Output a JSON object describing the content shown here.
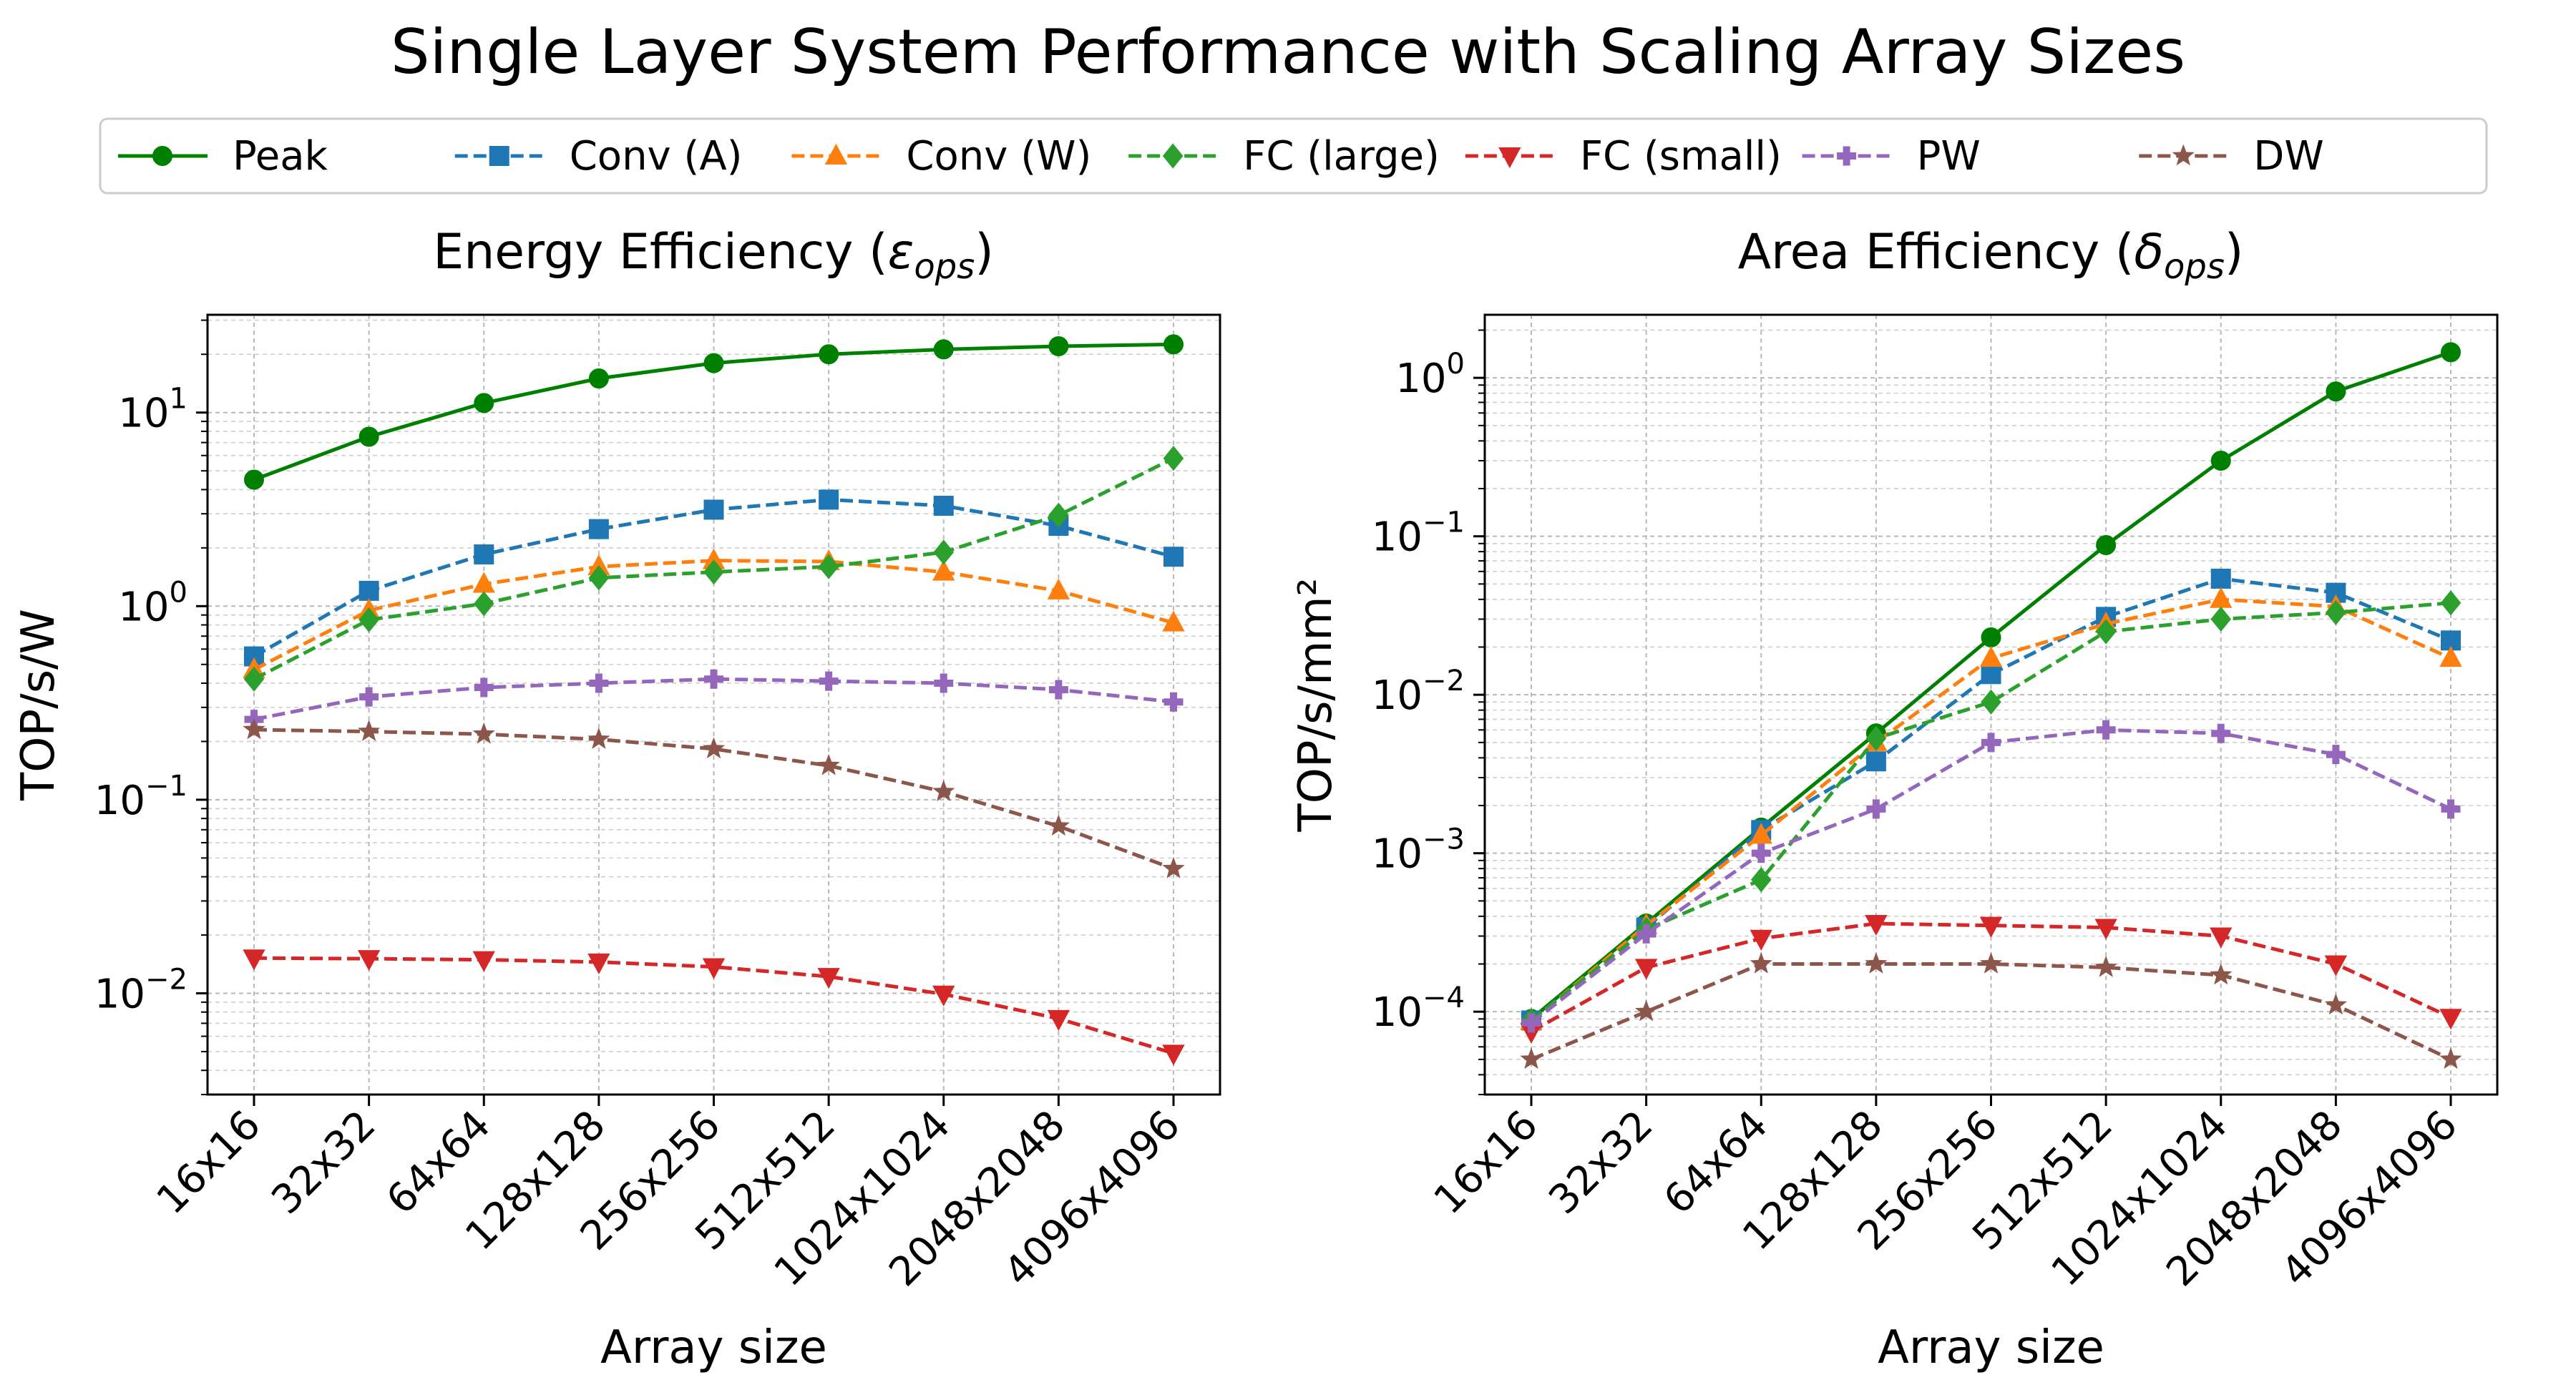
{
  "figure": {
    "title": "Single Layer System Performance with Scaling Array Sizes"
  },
  "legend": {
    "placement": "top-center",
    "entries": [
      {
        "key": "peak",
        "label": "Peak"
      },
      {
        "key": "conv_a",
        "label": "Conv (A)"
      },
      {
        "key": "conv_w",
        "label": "Conv (W)"
      },
      {
        "key": "fc_large",
        "label": "FC (large)"
      },
      {
        "key": "fc_small",
        "label": "FC (small)"
      },
      {
        "key": "pw",
        "label": "PW"
      },
      {
        "key": "dw",
        "label": "DW"
      }
    ]
  },
  "series_styles": {
    "peak": {
      "color": "#008000",
      "marker": "circle",
      "dashed": false
    },
    "conv_a": {
      "color": "#1f77b4",
      "marker": "square",
      "dashed": true
    },
    "conv_w": {
      "color": "#ff7f0e",
      "marker": "triangle-up",
      "dashed": true
    },
    "fc_large": {
      "color": "#2ca02c",
      "marker": "diamond",
      "dashed": true
    },
    "fc_small": {
      "color": "#d62728",
      "marker": "triangle-down",
      "dashed": true
    },
    "pw": {
      "color": "#9467bd",
      "marker": "plus",
      "dashed": true
    },
    "dw": {
      "color": "#8c564b",
      "marker": "star",
      "dashed": true
    }
  },
  "chart_data": [
    {
      "type": "line",
      "title_prefix": "Energy Efficiency (",
      "title_symbol": "ε",
      "title_subscript": "ops",
      "title_suffix": ")",
      "xlabel": "Array size",
      "ylabel": "TOP/s/W",
      "yscale": "log",
      "ylim": [
        0.003,
        32
      ],
      "yticks": [
        {
          "value": 0.01,
          "base": "10",
          "exp": "−2"
        },
        {
          "value": 0.1,
          "base": "10",
          "exp": "−1"
        },
        {
          "value": 1,
          "base": "10",
          "exp": "0"
        },
        {
          "value": 10,
          "base": "10",
          "exp": "1"
        }
      ],
      "grid": true,
      "categories": [
        "16x16",
        "32x32",
        "64x64",
        "128x128",
        "256x256",
        "512x512",
        "1024x1024",
        "2048x2048",
        "4096x4096"
      ],
      "series": [
        {
          "key": "peak",
          "values": [
            4.5,
            7.5,
            11.2,
            15.0,
            18.0,
            20.0,
            21.2,
            22.0,
            22.5
          ]
        },
        {
          "key": "conv_a",
          "values": [
            0.55,
            1.2,
            1.85,
            2.5,
            3.15,
            3.55,
            3.3,
            2.6,
            1.8
          ]
        },
        {
          "key": "conv_w",
          "values": [
            0.47,
            0.95,
            1.3,
            1.6,
            1.72,
            1.7,
            1.5,
            1.2,
            0.82
          ]
        },
        {
          "key": "fc_large",
          "values": [
            0.42,
            0.85,
            1.03,
            1.4,
            1.5,
            1.6,
            1.9,
            2.95,
            5.8
          ]
        },
        {
          "key": "fc_small",
          "values": [
            0.0152,
            0.0151,
            0.0149,
            0.0145,
            0.0137,
            0.0122,
            0.0099,
            0.0074,
            0.0049
          ]
        },
        {
          "key": "pw",
          "values": [
            0.26,
            0.34,
            0.38,
            0.4,
            0.42,
            0.41,
            0.4,
            0.37,
            0.32
          ]
        },
        {
          "key": "dw",
          "values": [
            0.23,
            0.225,
            0.218,
            0.205,
            0.183,
            0.15,
            0.11,
            0.073,
            0.044
          ]
        }
      ]
    },
    {
      "type": "line",
      "title_prefix": "Area Efficiency (",
      "title_symbol": "δ",
      "title_subscript": "ops",
      "title_suffix": ")",
      "xlabel": "Array size",
      "ylabel": "TOP/s/mm²",
      "yscale": "log",
      "ylim": [
        3e-05,
        2.5
      ],
      "yticks": [
        {
          "value": 0.0001,
          "base": "10",
          "exp": "−4"
        },
        {
          "value": 0.001,
          "base": "10",
          "exp": "−3"
        },
        {
          "value": 0.01,
          "base": "10",
          "exp": "−2"
        },
        {
          "value": 0.1,
          "base": "10",
          "exp": "−1"
        },
        {
          "value": 1,
          "base": "10",
          "exp": "0"
        }
      ],
      "grid": true,
      "categories": [
        "16x16",
        "32x32",
        "64x64",
        "128x128",
        "256x256",
        "512x512",
        "1024x1024",
        "2048x2048",
        "4096x4096"
      ],
      "series": [
        {
          "key": "peak",
          "values": [
            9e-05,
            0.00036,
            0.00145,
            0.0057,
            0.023,
            0.088,
            0.3,
            0.82,
            1.45
          ]
        },
        {
          "key": "conv_a",
          "values": [
            8.8e-05,
            0.00034,
            0.0014,
            0.0038,
            0.0135,
            0.031,
            0.054,
            0.044,
            0.022
          ]
        },
        {
          "key": "conv_w",
          "values": [
            8.7e-05,
            0.00035,
            0.0013,
            0.005,
            0.017,
            0.028,
            0.04,
            0.036,
            0.017
          ]
        },
        {
          "key": "fc_large",
          "values": [
            8.8e-05,
            0.00033,
            0.00068,
            0.0053,
            0.009,
            0.025,
            0.03,
            0.033,
            0.038
          ]
        },
        {
          "key": "fc_small",
          "values": [
            7.5e-05,
            0.00019,
            0.00029,
            0.00036,
            0.00035,
            0.00034,
            0.0003,
            0.0002,
            9.2e-05
          ]
        },
        {
          "key": "pw",
          "values": [
            8.5e-05,
            0.00031,
            0.001,
            0.0019,
            0.005,
            0.006,
            0.0057,
            0.0042,
            0.0019
          ]
        },
        {
          "key": "dw",
          "values": [
            5e-05,
            0.0001,
            0.0002,
            0.0002,
            0.0002,
            0.00019,
            0.00017,
            0.00011,
            5e-05
          ]
        }
      ]
    }
  ]
}
